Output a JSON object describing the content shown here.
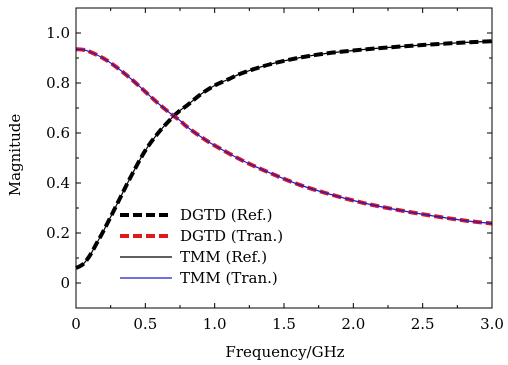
{
  "chart_data": {
    "type": "line",
    "xlabel": "Frequency/GHz",
    "ylabel": "Magnitude",
    "xlim": [
      0,
      3.0
    ],
    "ylim": [
      -0.1,
      1.1
    ],
    "xticks": [
      0,
      0.5,
      1.0,
      1.5,
      2.0,
      2.5,
      3.0
    ],
    "xtick_labels": [
      "0",
      "0.5",
      "1.0",
      "1.5",
      "2.0",
      "2.5",
      "3.0"
    ],
    "yticks": [
      0,
      0.2,
      0.4,
      0.6,
      0.8,
      1.0
    ],
    "ytick_labels": [
      "0",
      "0.2",
      "0.4",
      "0.6",
      "0.8",
      "1.0"
    ],
    "grid": false,
    "legend_position": "bottom-left",
    "series": [
      {
        "name": "DGTD (Ref.)",
        "style": "dashed-thick",
        "color": "#000000",
        "x": [
          0,
          0.05,
          0.1,
          0.15,
          0.2,
          0.3,
          0.4,
          0.5,
          0.6,
          0.7,
          0.75,
          0.8,
          0.9,
          1.0,
          1.1,
          1.2,
          1.4,
          1.6,
          1.8,
          2.0,
          2.2,
          2.5,
          2.8,
          3.0
        ],
        "y": [
          0.06,
          0.075,
          0.11,
          0.16,
          0.21,
          0.32,
          0.43,
          0.53,
          0.605,
          0.665,
          0.69,
          0.71,
          0.755,
          0.79,
          0.815,
          0.84,
          0.875,
          0.9,
          0.918,
          0.93,
          0.94,
          0.952,
          0.962,
          0.967
        ]
      },
      {
        "name": "DGTD (Tran.)",
        "style": "dashed-thick",
        "color": "#e01a1a",
        "x": [
          0,
          0.05,
          0.1,
          0.2,
          0.3,
          0.4,
          0.5,
          0.6,
          0.7,
          0.75,
          0.8,
          0.9,
          1.0,
          1.2,
          1.4,
          1.6,
          1.8,
          2.0,
          2.2,
          2.5,
          2.8,
          3.0
        ],
        "y": [
          0.935,
          0.933,
          0.925,
          0.898,
          0.86,
          0.815,
          0.765,
          0.715,
          0.67,
          0.65,
          0.625,
          0.585,
          0.55,
          0.49,
          0.44,
          0.395,
          0.36,
          0.33,
          0.305,
          0.275,
          0.25,
          0.238
        ]
      },
      {
        "name": "TMM (Ref.)",
        "style": "solid",
        "color": "#000000",
        "x": [
          0,
          0.05,
          0.1,
          0.15,
          0.2,
          0.3,
          0.4,
          0.5,
          0.6,
          0.7,
          0.75,
          0.8,
          0.9,
          1.0,
          1.1,
          1.2,
          1.4,
          1.6,
          1.8,
          2.0,
          2.2,
          2.5,
          2.8,
          3.0
        ],
        "y": [
          0.06,
          0.075,
          0.11,
          0.16,
          0.21,
          0.32,
          0.43,
          0.53,
          0.605,
          0.665,
          0.69,
          0.71,
          0.755,
          0.79,
          0.815,
          0.84,
          0.875,
          0.9,
          0.918,
          0.93,
          0.94,
          0.952,
          0.962,
          0.967
        ]
      },
      {
        "name": "TMM (Tran.)",
        "style": "solid",
        "color": "#1a1ad0",
        "x": [
          0,
          0.05,
          0.1,
          0.2,
          0.3,
          0.4,
          0.5,
          0.6,
          0.7,
          0.75,
          0.8,
          0.9,
          1.0,
          1.2,
          1.4,
          1.6,
          1.8,
          2.0,
          2.2,
          2.5,
          2.8,
          3.0
        ],
        "y": [
          0.935,
          0.933,
          0.925,
          0.898,
          0.86,
          0.815,
          0.765,
          0.715,
          0.67,
          0.65,
          0.625,
          0.585,
          0.55,
          0.49,
          0.44,
          0.395,
          0.36,
          0.33,
          0.305,
          0.275,
          0.25,
          0.238
        ]
      }
    ]
  }
}
